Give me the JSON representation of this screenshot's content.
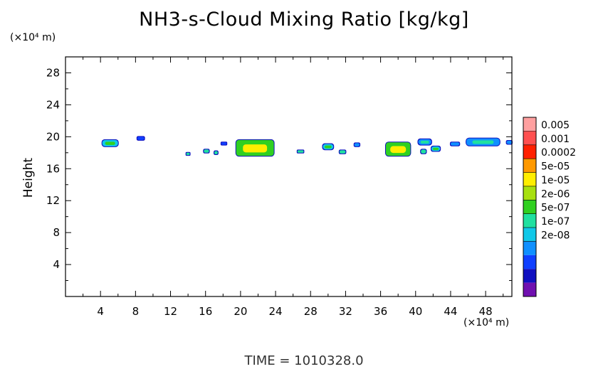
{
  "chart_data": {
    "type": "heatmap",
    "title": "NH3-s-Cloud Mixing Ratio [kg/kg]",
    "ylabel": "Height",
    "xlabel": "",
    "x_unit": "(×10⁴ m)",
    "y_unit": "(×10⁴ m)",
    "xlim": [
      0,
      51
    ],
    "ylim": [
      0,
      30
    ],
    "x_ticks": [
      4,
      8,
      12,
      16,
      20,
      24,
      28,
      32,
      36,
      40,
      44,
      48
    ],
    "y_ticks": [
      4,
      8,
      12,
      16,
      20,
      24,
      28
    ],
    "colorbar": {
      "labels": [
        "0.005",
        "0.001",
        "0.0002",
        "5e-05",
        "1e-05",
        "2e-06",
        "5e-07",
        "1e-07",
        "2e-08"
      ],
      "colors": [
        "#ffa0a0",
        "#ff5050",
        "#ff2000",
        "#ff9900",
        "#ffee00",
        "#a8e010",
        "#30d020",
        "#20e0a0",
        "#10c8e8",
        "#1090ff",
        "#1040ff",
        "#1010c0",
        "#7010b0"
      ]
    },
    "cloud_patches": [
      {
        "x": [
          4.2,
          6.0
        ],
        "y": [
          18.8,
          19.6
        ],
        "level": "5e-07"
      },
      {
        "x": [
          8.2,
          9.0
        ],
        "y": [
          19.6,
          20.0
        ],
        "level": "2e-08"
      },
      {
        "x": [
          13.8,
          14.2
        ],
        "y": [
          17.7,
          18.0
        ],
        "level": "2e-06"
      },
      {
        "x": [
          15.8,
          16.4
        ],
        "y": [
          18.0,
          18.4
        ],
        "level": "2e-06"
      },
      {
        "x": [
          17.0,
          17.4
        ],
        "y": [
          17.8,
          18.2
        ],
        "level": "2e-06"
      },
      {
        "x": [
          17.8,
          18.4
        ],
        "y": [
          19.0,
          19.3
        ],
        "level": "2e-08"
      },
      {
        "x": [
          19.5,
          23.8
        ],
        "y": [
          17.6,
          19.6
        ],
        "level": "1e-05"
      },
      {
        "x": [
          26.5,
          27.2
        ],
        "y": [
          18.0,
          18.3
        ],
        "level": "2e-06"
      },
      {
        "x": [
          29.4,
          30.6
        ],
        "y": [
          18.4,
          19.1
        ],
        "level": "5e-07"
      },
      {
        "x": [
          31.3,
          32.0
        ],
        "y": [
          17.9,
          18.3
        ],
        "level": "2e-06"
      },
      {
        "x": [
          33.0,
          33.6
        ],
        "y": [
          18.8,
          19.2
        ],
        "level": "1e-07"
      },
      {
        "x": [
          36.6,
          39.4
        ],
        "y": [
          17.6,
          19.3
        ],
        "level": "1e-05"
      },
      {
        "x": [
          40.3,
          41.8
        ],
        "y": [
          19.0,
          19.7
        ],
        "level": "1e-07"
      },
      {
        "x": [
          40.6,
          41.2
        ],
        "y": [
          17.9,
          18.4
        ],
        "level": "2e-06"
      },
      {
        "x": [
          41.8,
          42.8
        ],
        "y": [
          18.2,
          18.8
        ],
        "level": "5e-07"
      },
      {
        "x": [
          44.0,
          45.0
        ],
        "y": [
          18.9,
          19.3
        ],
        "level": "1e-07"
      },
      {
        "x": [
          45.8,
          49.6
        ],
        "y": [
          18.9,
          19.8
        ],
        "level": "1e-07"
      },
      {
        "x": [
          50.4,
          51.0
        ],
        "y": [
          19.1,
          19.5
        ],
        "level": "1e-07"
      }
    ],
    "grid": false,
    "legend": "right colorbar"
  },
  "annotations": {
    "y_unit_label": "(×10⁴ m)",
    "x_unit_label": "(×10⁴ m)",
    "time_label": "TIME  =  1010328.0"
  }
}
